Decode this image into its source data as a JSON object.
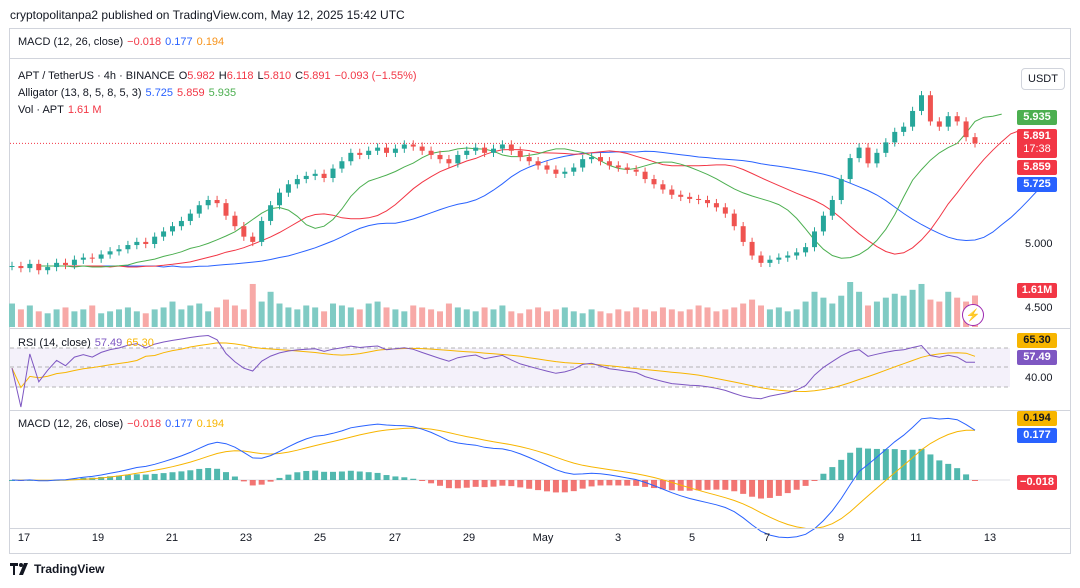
{
  "header": {
    "published": "cryptopolitanpa2 published on TradingView.com, May 12, 2025 15:42 UTC"
  },
  "top_legend": {
    "macd": "MACD (12, 26, close)",
    "v1": "−0.018",
    "v2": "0.177",
    "v3": "0.194"
  },
  "main_legend": {
    "symbol": "APT / TetherUS · 4h · BINANCE",
    "o_label": "O",
    "o": "5.982",
    "h_label": "H",
    "h": "6.118",
    "l_label": "L",
    "l": "5.810",
    "c_label": "C",
    "c": "5.891",
    "change": "−0.093 (−1.55%)",
    "alligator": "Alligator (13, 8, 5, 8, 5, 3)",
    "a1": "5.725",
    "a2": "5.859",
    "a3": "5.935",
    "vol": "Vol · APT",
    "vol_val": "1.61 M"
  },
  "currency_button": "USDT",
  "price_axis": {
    "l5000": "5.000",
    "l4500": "4.500"
  },
  "price_tags": {
    "green": "5.935",
    "red": "5.891",
    "countdown": "17:38",
    "red2": "5.859",
    "blue": "5.725",
    "vol": "1.61M"
  },
  "rsi": {
    "label": "RSI (14, close)",
    "v1": "57.49",
    "v2": "65.30",
    "axis": "40.00",
    "tag1": "65.30",
    "tag2": "57.49"
  },
  "macd": {
    "label": "MACD (12, 26, close)",
    "v1": "−0.018",
    "v2": "0.177",
    "v3": "0.194",
    "tag1": "0.194",
    "tag2": "0.177",
    "tag3": "−0.018"
  },
  "x_axis": [
    "17",
    "19",
    "21",
    "23",
    "25",
    "27",
    "29",
    "May",
    "3",
    "5",
    "7",
    "9",
    "11",
    "13"
  ],
  "footer": {
    "brand": "TradingView"
  },
  "colors": {
    "up": "#26a69a",
    "down": "#ef5350",
    "blue": "#2962ff",
    "red": "#f23645",
    "green": "#4caf50",
    "orange": "#f7931a",
    "rsi": "#7e57c2"
  },
  "chart_data": {
    "type": "candlestick",
    "x_unit": "4h bars",
    "price_close": [
      4.72,
      4.7,
      4.74,
      4.68,
      4.71,
      4.75,
      4.73,
      4.78,
      4.8,
      4.79,
      4.83,
      4.86,
      4.88,
      4.92,
      4.95,
      4.93,
      5.0,
      5.05,
      5.1,
      5.15,
      5.22,
      5.3,
      5.35,
      5.32,
      5.2,
      5.1,
      5.0,
      4.95,
      5.15,
      5.3,
      5.42,
      5.5,
      5.55,
      5.58,
      5.6,
      5.56,
      5.65,
      5.72,
      5.8,
      5.78,
      5.82,
      5.85,
      5.8,
      5.84,
      5.88,
      5.86,
      5.82,
      5.78,
      5.74,
      5.7,
      5.78,
      5.82,
      5.85,
      5.8,
      5.84,
      5.88,
      5.82,
      5.76,
      5.72,
      5.68,
      5.64,
      5.6,
      5.62,
      5.66,
      5.74,
      5.76,
      5.72,
      5.68,
      5.66,
      5.64,
      5.62,
      5.55,
      5.5,
      5.45,
      5.4,
      5.38,
      5.36,
      5.35,
      5.32,
      5.28,
      5.22,
      5.1,
      4.95,
      4.82,
      4.75,
      4.78,
      4.8,
      4.82,
      4.85,
      4.9,
      5.05,
      5.2,
      5.35,
      5.55,
      5.75,
      5.85,
      5.7,
      5.8,
      5.9,
      6.0,
      6.05,
      6.2,
      6.35,
      6.1,
      6.05,
      6.15,
      6.1,
      5.95,
      5.891
    ],
    "volume_m": [
      1.2,
      0.9,
      1.1,
      0.8,
      0.7,
      0.9,
      1.0,
      0.8,
      0.9,
      1.1,
      0.7,
      0.8,
      0.9,
      1.0,
      0.8,
      0.7,
      0.9,
      1.0,
      1.3,
      0.9,
      1.1,
      1.2,
      0.8,
      1.0,
      1.4,
      1.1,
      0.9,
      2.2,
      1.3,
      1.8,
      1.2,
      1.0,
      0.9,
      1.1,
      1.0,
      0.8,
      1.2,
      1.1,
      1.0,
      0.9,
      1.2,
      1.3,
      1.0,
      0.9,
      0.8,
      1.1,
      1.0,
      0.9,
      0.8,
      1.2,
      1.0,
      0.9,
      0.8,
      1.0,
      0.9,
      1.1,
      0.8,
      0.7,
      0.9,
      1.0,
      0.8,
      0.9,
      1.0,
      0.8,
      0.7,
      0.9,
      0.8,
      0.7,
      0.9,
      0.8,
      1.0,
      0.9,
      0.8,
      1.0,
      0.9,
      0.8,
      0.9,
      1.1,
      1.0,
      0.8,
      0.9,
      1.0,
      1.2,
      1.4,
      1.1,
      0.9,
      1.0,
      0.8,
      0.9,
      1.3,
      1.8,
      1.5,
      1.2,
      1.6,
      2.3,
      1.8,
      1.1,
      1.3,
      1.5,
      1.7,
      1.6,
      1.9,
      2.2,
      1.4,
      1.3,
      1.8,
      1.5,
      1.3,
      1.61
    ],
    "rsi_last": 57.49,
    "rsi_ma_last": 65.3,
    "macd_last": 0.177,
    "signal_last": 0.194,
    "hist_last": -0.018,
    "price_ylim": [
      4.3,
      6.4
    ]
  }
}
